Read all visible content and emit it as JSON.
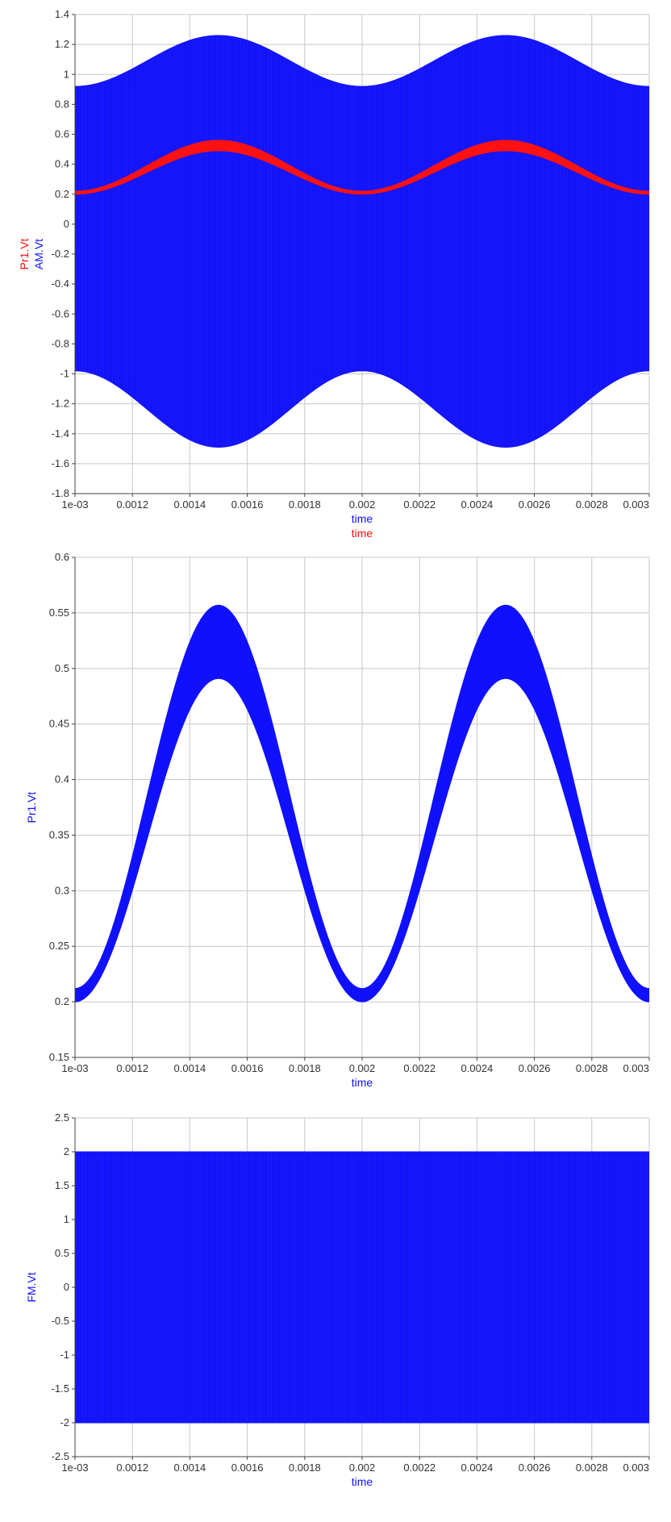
{
  "colors": {
    "blue": "#1010ff",
    "red": "#ff1111",
    "grid": "#c8c8c8",
    "axis": "#444444"
  },
  "chart_data": [
    {
      "type": "line",
      "xlabel": [
        "time",
        "time"
      ],
      "ylabel": [
        "Pr1.Vt",
        "AM.Vt"
      ],
      "xlim": [
        0.001,
        0.003
      ],
      "ylim": [
        -1.8,
        1.4
      ],
      "x_ticks": [
        "1e-03",
        "0.0012",
        "0.0014",
        "0.0016",
        "0.0018",
        "0.002",
        "0.0022",
        "0.0024",
        "0.0026",
        "0.0028",
        "0.003"
      ],
      "y_ticks": [
        "-1.8",
        "-1.6",
        "-1.4",
        "-1.2",
        "-1",
        "-0.8",
        "-0.6",
        "-0.4",
        "-0.2",
        "0",
        "0.2",
        "0.4",
        "0.6",
        "0.8",
        "1",
        "1.2",
        "1.4"
      ],
      "grid": true,
      "series": [
        {
          "name": "AM.Vt",
          "color": "#1010ff",
          "shape": "band",
          "x": [
            0.001,
            0.0015,
            0.002,
            0.0025,
            0.003
          ],
          "upper": [
            0.92,
            1.26,
            0.92,
            1.26,
            0.92
          ],
          "lower": [
            -0.98,
            -1.49,
            -0.98,
            -1.49,
            -0.98
          ]
        },
        {
          "name": "Pr1.Vt",
          "color": "#ff1111",
          "shape": "band",
          "x": [
            0.001,
            0.0015,
            0.002,
            0.0025,
            0.003
          ],
          "upper": [
            0.22,
            0.56,
            0.22,
            0.56,
            0.22
          ],
          "lower": [
            0.2,
            0.49,
            0.2,
            0.49,
            0.2
          ]
        }
      ]
    },
    {
      "type": "line",
      "xlabel": [
        "time"
      ],
      "ylabel": [
        "Pr1.Vt"
      ],
      "xlim": [
        0.001,
        0.003
      ],
      "ylim": [
        0.15,
        0.6
      ],
      "x_ticks": [
        "1e-03",
        "0.0012",
        "0.0014",
        "0.0016",
        "0.0018",
        "0.002",
        "0.0022",
        "0.0024",
        "0.0026",
        "0.0028",
        "0.003"
      ],
      "y_ticks": [
        "0.15",
        "0.2",
        "0.25",
        "0.3",
        "0.35",
        "0.4",
        "0.45",
        "0.5",
        "0.55",
        "0.6"
      ],
      "grid": true,
      "series": [
        {
          "name": "Pr1.Vt",
          "color": "#1010ff",
          "shape": "band",
          "x": [
            0.001,
            0.0015,
            0.002,
            0.0025,
            0.003
          ],
          "upper": [
            0.212,
            0.557,
            0.212,
            0.557,
            0.212
          ],
          "lower": [
            0.2,
            0.491,
            0.2,
            0.491,
            0.2
          ]
        }
      ]
    },
    {
      "type": "line",
      "xlabel": [
        "time"
      ],
      "ylabel": [
        "FM.Vt"
      ],
      "xlim": [
        0.001,
        0.003
      ],
      "ylim": [
        -2.5,
        2.5
      ],
      "x_ticks": [
        "1e-03",
        "0.0012",
        "0.0014",
        "0.0016",
        "0.0018",
        "0.002",
        "0.0022",
        "0.0024",
        "0.0026",
        "0.0028",
        "0.003"
      ],
      "y_ticks": [
        "-2.5",
        "-2",
        "-1.5",
        "-1",
        "-0.5",
        "0",
        "0.5",
        "1",
        "1.5",
        "2",
        "2.5"
      ],
      "grid": true,
      "series": [
        {
          "name": "FM.Vt",
          "color": "#1010ff",
          "shape": "band",
          "x": [
            0.001,
            0.003
          ],
          "upper": [
            2,
            2
          ],
          "lower": [
            -2,
            -2
          ]
        }
      ]
    }
  ]
}
